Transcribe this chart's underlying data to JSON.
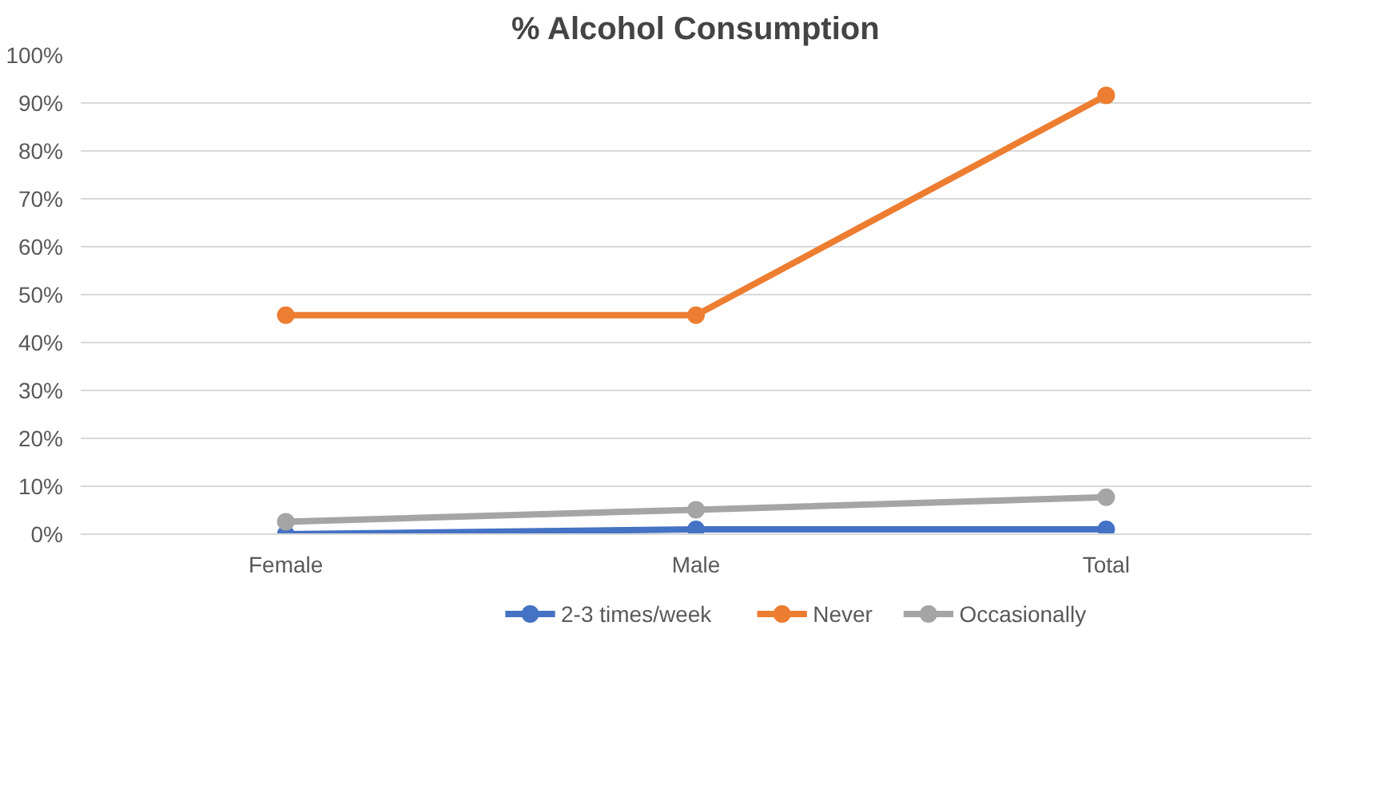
{
  "chart_data": {
    "type": "line",
    "title": "% Alcohol Consumption",
    "categories": [
      "Female",
      "Male",
      "Total"
    ],
    "series": [
      {
        "name": "2-3 times/week",
        "color": "#4472c4",
        "values": [
          0,
          1,
          1
        ]
      },
      {
        "name": "Never",
        "color": "#ed7d31",
        "values": [
          45.7,
          45.7,
          91.6
        ]
      },
      {
        "name": "Occasionally",
        "color": "#a5a5a5",
        "values": [
          2.6,
          5.1,
          7.7
        ]
      }
    ],
    "ylim": [
      0,
      100
    ],
    "yticks": [
      {
        "value": 0,
        "label": "0%"
      },
      {
        "value": 10,
        "label": "10%"
      },
      {
        "value": 20,
        "label": "20%"
      },
      {
        "value": 30,
        "label": "30%"
      },
      {
        "value": 40,
        "label": "40%"
      },
      {
        "value": 50,
        "label": "50%"
      },
      {
        "value": 60,
        "label": "60%"
      },
      {
        "value": 70,
        "label": "70%"
      },
      {
        "value": 80,
        "label": "80%"
      },
      {
        "value": 90,
        "label": "90%"
      },
      {
        "value": 100,
        "label": "100%"
      }
    ],
    "grid": "y",
    "legend": "bottom",
    "marker": "circle",
    "line_style": "solid"
  }
}
